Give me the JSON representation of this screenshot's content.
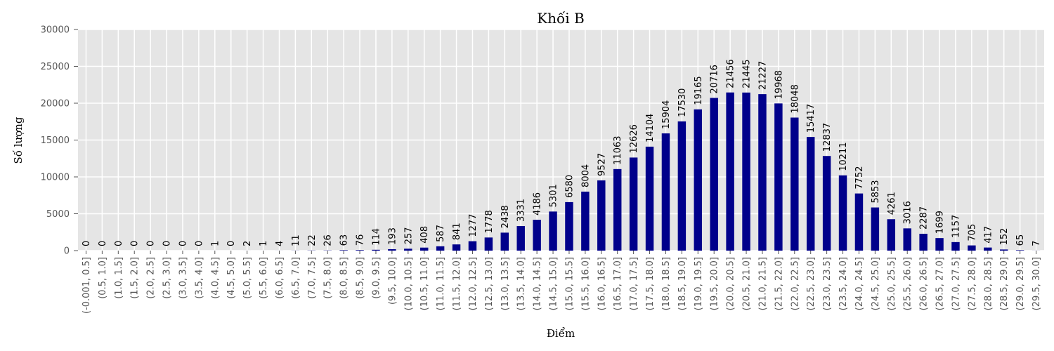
{
  "chart_data": {
    "type": "bar",
    "title": "Khối B",
    "x_label": "Điểm",
    "y_label": "Số lượng",
    "categories": [
      "(-0.001, 0.5]",
      "(0.5, 1.0]",
      "(1.0, 1.5]",
      "(1.5, 2.0]",
      "(2.0, 2.5]",
      "(2.5, 3.0]",
      "(3.0, 3.5]",
      "(3.5, 4.0]",
      "(4.0, 4.5]",
      "(4.5, 5.0]",
      "(5.0, 5.5]",
      "(5.5, 6.0]",
      "(6.0, 6.5]",
      "(6.5, 7.0]",
      "(7.0, 7.5]",
      "(7.5, 8.0]",
      "(8.0, 8.5]",
      "(8.5, 9.0]",
      "(9.0, 9.5]",
      "(9.5, 10.0]",
      "(10.0, 10.5]",
      "(10.5, 11.0]",
      "(11.0, 11.5]",
      "(11.5, 12.0]",
      "(12.0, 12.5]",
      "(12.5, 13.0]",
      "(13.0, 13.5]",
      "(13.5, 14.0]",
      "(14.0, 14.5]",
      "(14.5, 15.0]",
      "(15.0, 15.5]",
      "(15.5, 16.0]",
      "(16.0, 16.5]",
      "(16.5, 17.0]",
      "(17.0, 17.5]",
      "(17.5, 18.0]",
      "(18.0, 18.5]",
      "(18.5, 19.0]",
      "(19.0, 19.5]",
      "(19.5, 20.0]",
      "(20.0, 20.5]",
      "(20.5, 21.0]",
      "(21.0, 21.5]",
      "(21.5, 22.0]",
      "(22.0, 22.5]",
      "(22.5, 23.0]",
      "(23.0, 23.5]",
      "(23.5, 24.0]",
      "(24.0, 24.5]",
      "(24.5, 25.0]",
      "(25.0, 25.5]",
      "(25.5, 26.0]",
      "(26.0, 26.5]",
      "(26.5, 27.0]",
      "(27.0, 27.5]",
      "(27.5, 28.0]",
      "(28.0, 28.5]",
      "(28.5, 29.0]",
      "(29.0, 29.5]",
      "(29.5, 30.0]"
    ],
    "values": [
      0,
      0,
      0,
      0,
      0,
      0,
      0,
      0,
      1,
      0,
      2,
      1,
      4,
      11,
      22,
      26,
      63,
      76,
      114,
      193,
      257,
      408,
      587,
      841,
      1277,
      1778,
      2438,
      3331,
      4186,
      5301,
      6580,
      8004,
      9527,
      11063,
      12626,
      14104,
      15904,
      17530,
      19165,
      20716,
      21456,
      21445,
      21227,
      19968,
      18048,
      15417,
      12837,
      10211,
      7752,
      5853,
      4261,
      3016,
      2287,
      1699,
      1157,
      705,
      417,
      152,
      65,
      7
    ],
    "color": "#00008b",
    "ylim": [
      0,
      30000
    ],
    "yticks": [
      0,
      5000,
      10000,
      15000,
      20000,
      25000,
      30000
    ],
    "grid": true
  }
}
